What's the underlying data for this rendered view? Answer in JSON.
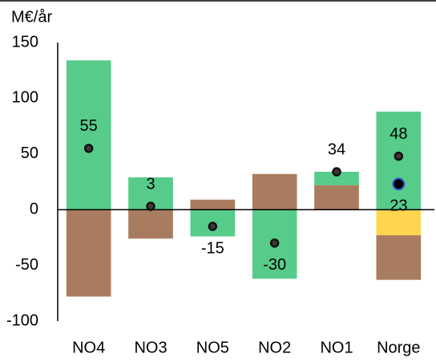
{
  "chart_data": {
    "type": "bar",
    "y_label": "M€/år",
    "categories": [
      "NO4",
      "NO3",
      "NO5",
      "NO2",
      "NO1",
      "Norge"
    ],
    "series": [
      {
        "color": "#ffd54f",
        "values": [
          0,
          0,
          0,
          0,
          0,
          -23
        ]
      },
      {
        "color": "#a97c5f",
        "values": [
          -78,
          -26,
          9,
          32,
          22,
          -40
        ]
      },
      {
        "color": "#57cc8a",
        "values": [
          134,
          29,
          -24,
          -62,
          12,
          88
        ]
      }
    ],
    "markers": [
      {
        "color": "#3a3a3a",
        "values": [
          55,
          3,
          -15,
          -30,
          34,
          48
        ]
      },
      {
        "color": "#000000",
        "edge": "#3b5bdb",
        "values": [
          null,
          null,
          null,
          null,
          null,
          23
        ]
      }
    ],
    "stacked": true,
    "ylim": [
      -100,
      150
    ],
    "yticks": [
      -100,
      -50,
      0,
      50,
      100,
      150
    ],
    "grid": false
  }
}
